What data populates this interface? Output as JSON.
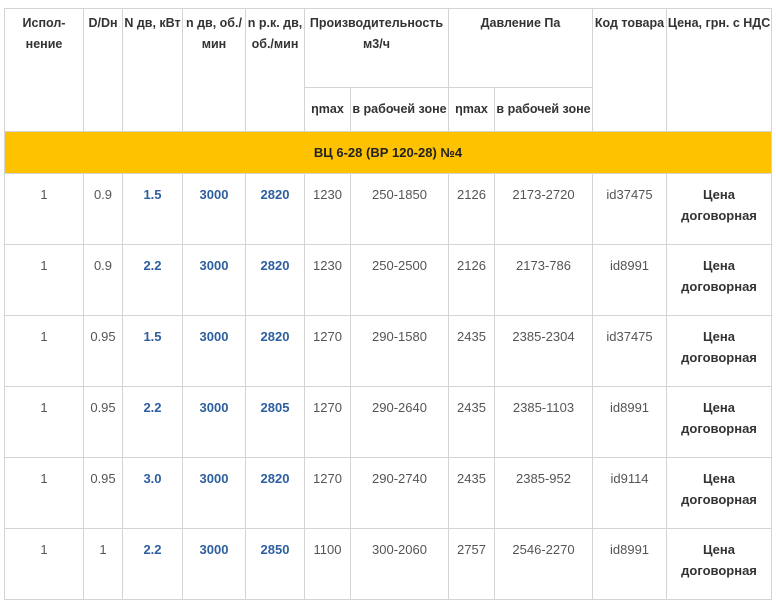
{
  "header": {
    "col1": "Испол-нение",
    "col2": "D/Dн",
    "col3": "N дв, кВт",
    "col4": "n дв, об./мин",
    "col5": "n р.к. дв, об./мин",
    "prod": "Производительность м3/ч",
    "press": "Давление Па",
    "code": "Код товара",
    "price": "Цена, грн. с НДС",
    "eta": "ηmax",
    "zone": "в рабочей зоне"
  },
  "group_title": "ВЦ 6-28 (ВР 120-28) №4",
  "rows": [
    {
      "isp": "1",
      "d": "0.9",
      "n": "1.5",
      "ndv": "3000",
      "nrk": "2820",
      "pmax": "1230",
      "pzone": "250-1850",
      "dmax": "2126",
      "dzone": "2173-2720",
      "code": "id37475",
      "price": "Цена договорная"
    },
    {
      "isp": "1",
      "d": "0.9",
      "n": "2.2",
      "ndv": "3000",
      "nrk": "2820",
      "pmax": "1230",
      "pzone": "250-2500",
      "dmax": "2126",
      "dzone": "2173-786",
      "code": "id8991",
      "price": "Цена договорная"
    },
    {
      "isp": "1",
      "d": "0.95",
      "n": "1.5",
      "ndv": "3000",
      "nrk": "2820",
      "pmax": "1270",
      "pzone": "290-1580",
      "dmax": "2435",
      "dzone": "2385-2304",
      "code": "id37475",
      "price": "Цена договорная"
    },
    {
      "isp": "1",
      "d": "0.95",
      "n": "2.2",
      "ndv": "3000",
      "nrk": "2805",
      "pmax": "1270",
      "pzone": "290-2640",
      "dmax": "2435",
      "dzone": "2385-1103",
      "code": "id8991",
      "price": "Цена договорная"
    },
    {
      "isp": "1",
      "d": "0.95",
      "n": "3.0",
      "ndv": "3000",
      "nrk": "2820",
      "pmax": "1270",
      "pzone": "290-2740",
      "dmax": "2435",
      "dzone": "2385-952",
      "code": "id9114",
      "price": "Цена договорная"
    },
    {
      "isp": "1",
      "d": "1",
      "n": "2.2",
      "ndv": "3000",
      "nrk": "2850",
      "pmax": "1100",
      "pzone": "300-2060",
      "dmax": "2757",
      "dzone": "2546-2270",
      "code": "id8991",
      "price": "Цена договорная"
    }
  ]
}
